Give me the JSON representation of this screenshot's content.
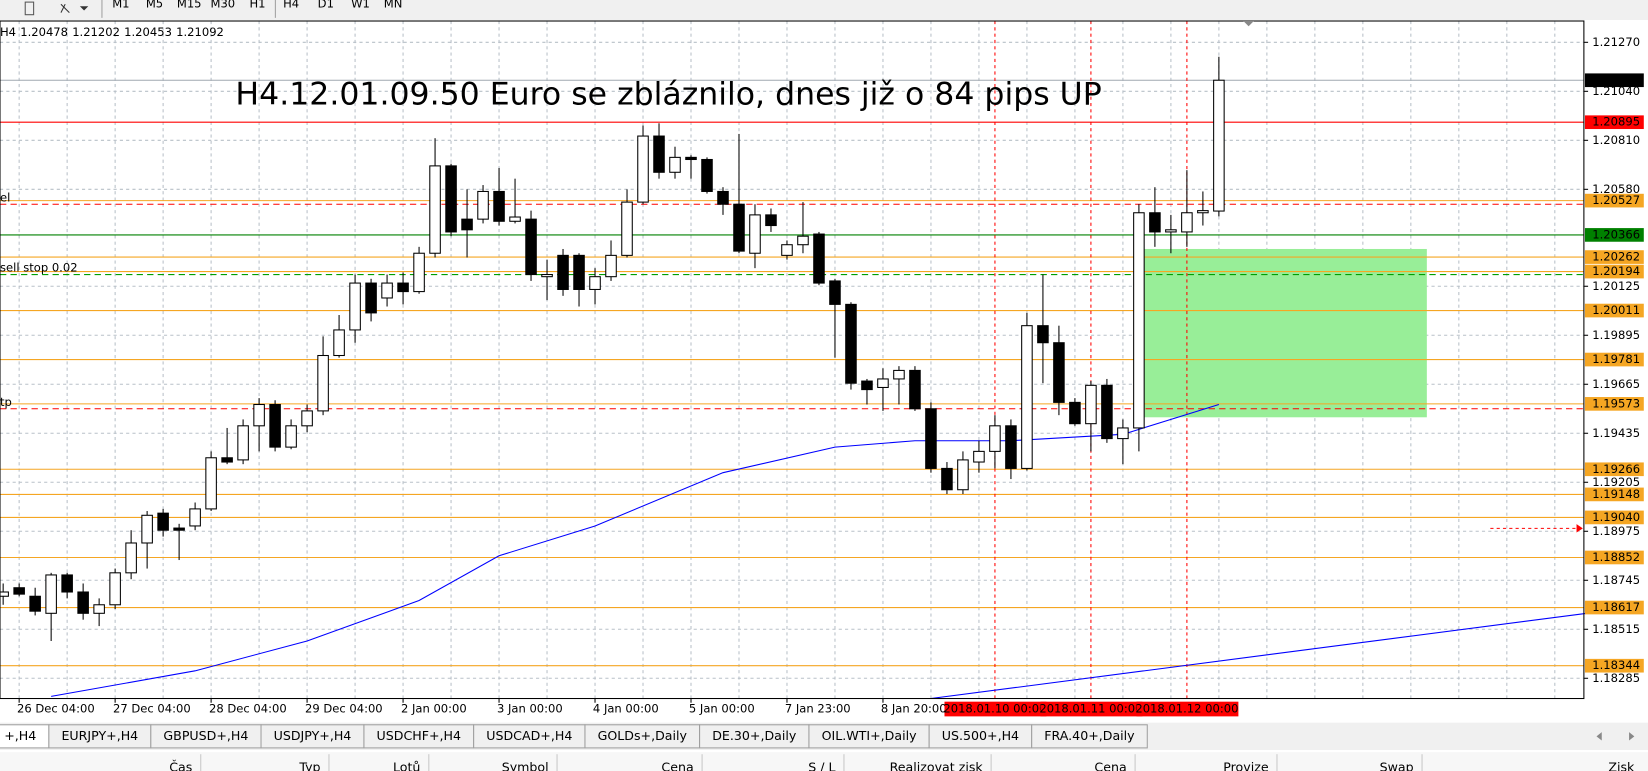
{
  "toolbar": {
    "timeframes": [
      "M1",
      "M5",
      "M15",
      "M30",
      "H1",
      "H4",
      "D1",
      "W1",
      "MN"
    ]
  },
  "header": {
    "period": "H4"
  },
  "chart": {
    "type": "candlestick",
    "title": "H4.12.01.09.50 Euro se zbláznilo, dnes již o 84 pips UP",
    "categories": [
      null,
      "26 Dec 04:00",
      null,
      null,
      null,
      null,
      null,
      "27 Dec 04:00",
      null,
      null,
      null,
      null,
      null,
      "28 Dec 04:00",
      null,
      null,
      null,
      null,
      null,
      "29 Dec 04:00",
      null,
      null,
      null,
      null,
      null,
      "2 Jan 00:00",
      null,
      null,
      null,
      null,
      null,
      "3 Jan 00:00",
      null,
      null,
      null,
      null,
      null,
      "4 Jan 00:00",
      null,
      null,
      null,
      null,
      null,
      "5 Jan 00:00",
      null,
      null,
      null,
      null,
      null,
      "7 Jan 23:00",
      null,
      null,
      null,
      null,
      null,
      "8 Jan 20:00",
      null,
      null,
      null,
      null,
      null,
      null,
      "2018.01.10 00:00",
      null,
      null,
      null,
      null,
      null,
      "2018.01.11 00:00",
      null,
      null,
      null,
      null,
      null,
      "2018.01.12 00:00",
      null,
      null
    ],
    "marked_categories": [
      62,
      68,
      74
    ],
    "marked_color": "#ff0000",
    "candles": {
      "open": [
        1.1867,
        1.1871,
        1.1867,
        1.1859,
        1.1877,
        1.1869,
        1.1859,
        1.1863,
        1.1878,
        1.1892,
        1.1906,
        1.1899,
        1.19,
        1.1908,
        1.1932,
        1.1931,
        1.1947,
        1.1957,
        1.1937,
        1.1947,
        1.1954,
        1.198,
        1.1992,
        1.2014,
        1.2007,
        1.2014,
        1.201,
        1.2028,
        1.2069,
        1.2044,
        1.2044,
        1.2057,
        1.2043,
        1.2044,
        1.2017,
        1.2027,
        1.2027,
        1.2011,
        1.2017,
        1.2027,
        1.2052,
        1.2083,
        1.2066,
        1.2073,
        1.2072,
        1.2057,
        1.2051,
        1.2028,
        1.2046,
        1.2027,
        1.2032,
        1.2037,
        1.2015,
        1.2004,
        1.1968,
        1.1965,
        1.1969,
        1.1973,
        1.1955,
        1.1927,
        1.1917,
        1.193,
        1.1935,
        1.1947,
        1.1927,
        1.1994,
        1.1986,
        1.1958,
        1.1948,
        1.1966,
        1.1941,
        1.1946,
        1.2047,
        1.2038,
        1.2038,
        1.2047,
        1.20478
      ],
      "high": [
        1.1873,
        1.1873,
        1.1871,
        1.1878,
        1.1878,
        1.1873,
        1.1866,
        1.188,
        1.1898,
        1.1907,
        1.1908,
        1.1901,
        1.1911,
        1.1935,
        1.1946,
        1.195,
        1.196,
        1.1959,
        1.195,
        1.1957,
        1.1989,
        1.1999,
        1.2018,
        1.2016,
        1.2018,
        1.2019,
        1.2031,
        1.2082,
        1.207,
        1.2058,
        1.206,
        1.2068,
        1.2063,
        1.2048,
        1.2025,
        1.203,
        1.2028,
        1.2021,
        1.2034,
        1.2058,
        1.2088,
        1.2089,
        1.2078,
        1.2074,
        1.2073,
        1.2059,
        1.2084,
        1.2051,
        1.2049,
        1.2034,
        1.2052,
        1.2038,
        1.2016,
        1.2005,
        1.1969,
        1.1974,
        1.1975,
        1.1975,
        1.1958,
        1.193,
        1.1935,
        1.194,
        1.1952,
        1.195,
        1.2,
        1.2018,
        1.1994,
        1.196,
        1.1968,
        1.1969,
        1.195,
        1.2051,
        1.2059,
        1.2046,
        1.2067,
        1.2057,
        1.21202
      ],
      "low": [
        1.1863,
        1.1867,
        1.1858,
        1.1846,
        1.1866,
        1.1856,
        1.1853,
        1.1861,
        1.1875,
        1.188,
        1.1895,
        1.1884,
        1.1898,
        1.1907,
        1.1929,
        1.1929,
        1.1935,
        1.1935,
        1.1936,
        1.1944,
        1.1952,
        1.1979,
        1.1986,
        1.1996,
        1.2003,
        1.2004,
        1.2009,
        1.2026,
        1.2036,
        1.2026,
        1.2042,
        1.2041,
        1.2042,
        1.2015,
        1.2006,
        1.2008,
        1.2003,
        1.2004,
        1.2015,
        1.2026,
        1.2051,
        1.2063,
        1.2063,
        1.2063,
        1.2056,
        1.2046,
        1.2028,
        1.2021,
        1.2038,
        1.2025,
        1.2028,
        1.2013,
        1.1979,
        1.1964,
        1.1957,
        1.1954,
        1.1957,
        1.1954,
        1.1925,
        1.1915,
        1.1915,
        1.1925,
        1.1927,
        1.1922,
        1.1926,
        1.1967,
        1.1952,
        1.1947,
        1.1935,
        1.1939,
        1.1929,
        1.1935,
        1.2031,
        1.2028,
        1.2031,
        1.2041,
        1.20453
      ],
      "close": [
        1.1869,
        1.1868,
        1.186,
        1.1877,
        1.1869,
        1.1859,
        1.1863,
        1.1878,
        1.1892,
        1.1905,
        1.1898,
        1.1898,
        1.1908,
        1.1932,
        1.193,
        1.1947,
        1.1957,
        1.1937,
        1.1947,
        1.1954,
        1.198,
        1.1992,
        1.2014,
        1.2,
        1.2014,
        1.201,
        1.2028,
        1.2069,
        1.2038,
        1.2039,
        1.2057,
        1.2043,
        1.2045,
        1.2018,
        1.2018,
        1.2011,
        1.2011,
        1.2017,
        1.2027,
        1.2052,
        1.2083,
        1.2066,
        1.2073,
        1.2072,
        1.2057,
        1.2051,
        1.2029,
        1.2046,
        1.2041,
        1.2032,
        1.2036,
        1.2014,
        1.2004,
        1.1967,
        1.1964,
        1.1969,
        1.1973,
        1.1955,
        1.1927,
        1.1917,
        1.1931,
        1.1935,
        1.1947,
        1.1927,
        1.1994,
        1.1986,
        1.1958,
        1.1948,
        1.1966,
        1.1941,
        1.1946,
        1.2047,
        1.2038,
        1.2039,
        1.2047,
        1.2048,
        1.21092
      ]
    },
    "up_color": "#ffffff",
    "down_color": "#000000",
    "ylim": [
      1.1819,
      1.2137
    ],
    "yticks": [
      {
        "value": 1.2127,
        "label": "1.21270"
      },
      {
        "value": 1.2104,
        "label": "1.21040"
      },
      {
        "value": 1.2081,
        "label": "1.20810"
      },
      {
        "value": 1.2058,
        "label": "1.20580"
      },
      1.20125,
      1.19895,
      1.19665,
      1.19435,
      1.19205,
      1.18975,
      1.18745,
      1.18515,
      1.18285
    ],
    "grid": true,
    "current_price_color": "#000000",
    "levels": [
      {
        "price": 1.20895,
        "color": "#ff0000"
      },
      {
        "price": 1.20527,
        "color": "#f5a623"
      },
      {
        "price": 1.20366,
        "color": "#008000"
      },
      {
        "price": 1.20262,
        "color": "#f5a623"
      },
      {
        "price": 1.20194,
        "color": "#f5a623"
      },
      {
        "price": 1.20011,
        "color": "#f5a623"
      },
      {
        "price": 1.19781,
        "color": "#f5a623"
      },
      {
        "price": 1.19573,
        "color": "#f5a623"
      },
      {
        "price": 1.19266,
        "color": "#f5a623"
      },
      {
        "price": 1.19148,
        "color": "#f5a623"
      },
      {
        "price": {
          "value": 1.1904,
          "label": "1.19040"
        },
        "color": "#f5a623"
      },
      {
        "price": 1.18852,
        "color": "#f5a623"
      },
      {
        "price": 1.18617,
        "color": "#f5a623"
      },
      {
        "price": 1.18344,
        "color": "#f5a623"
      }
    ],
    "orders": [
      {
        "label": "el",
        "price": 1.2051,
        "color": "#ff0000"
      },
      {
        "label": "sell stop 0.02",
        "price": 1.2018,
        "color": "#00a000"
      },
      {
        "label": "tp",
        "price": 1.1955,
        "color": "#ff0000"
      }
    ],
    "moving_average": {
      "color": "#0000ff",
      "x": [
        3,
        12,
        19,
        26,
        31,
        37,
        45,
        52,
        57,
        63,
        70,
        76
      ],
      "values": [
        1.182,
        1.1832,
        1.1846,
        1.1865,
        1.1886,
        1.19,
        1.1925,
        1.1937,
        1.194,
        1.194,
        1.1943,
        1.1957
      ]
    },
    "long_moving_average": {
      "color": "#0000ff",
      "x": [
        58,
        99
      ],
      "values": [
        1.1819,
        1.1859
      ]
    },
    "zone": {
      "color": "#98ee98",
      "x": [
        71,
        89
      ],
      "values": [
        1.203,
        1.1951
      ]
    }
  },
  "tabs": [
    "+,H4",
    "EURJPY+,H4",
    "GBPUSD+,H4",
    "USDJPY+,H4",
    "USDCHF+,H4",
    "USDCAD+,H4",
    "GOLDs+,Daily",
    "DE.30+,Daily",
    "OIL.WTI+,Daily",
    "US.500+,H4",
    "FRA.40+,Daily"
  ],
  "table": {
    "columns": [
      "Čas",
      "Typ",
      "Lotů",
      "Symbol",
      "Cena",
      "S / L",
      "Realizovat zisk",
      "Cena",
      "Provize",
      "Swap",
      "Zisk"
    ]
  }
}
